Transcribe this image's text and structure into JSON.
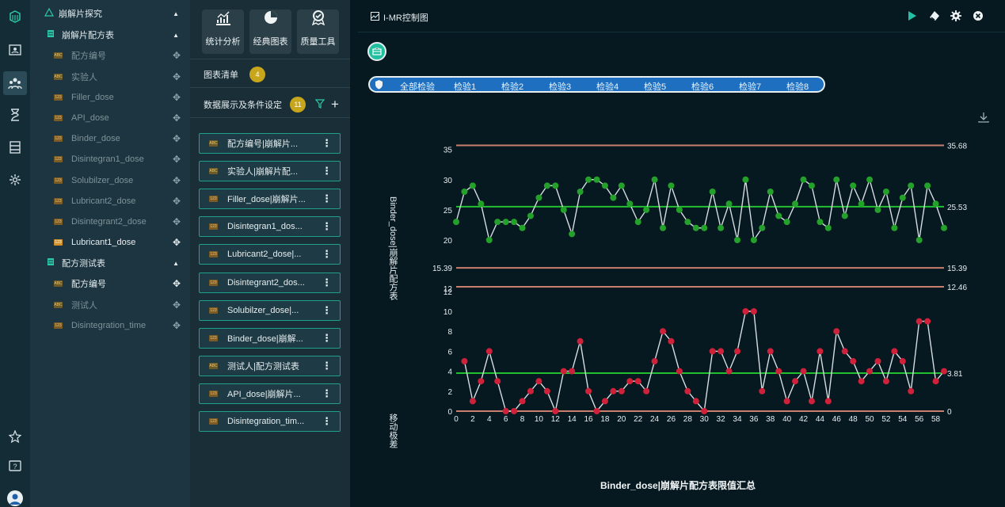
{
  "rail": {
    "icons": [
      "cube-icon",
      "id-card-icon",
      "users-icon",
      "hourglass-icon",
      "storage-icon",
      "settings-icon",
      "star-icon",
      "help-icon",
      "avatar-icon"
    ]
  },
  "tree": {
    "root": "崩解片探究",
    "table1": "崩解片配方表",
    "table1_fields": [
      {
        "label": "配方编号",
        "type": "abc"
      },
      {
        "label": "实验人",
        "type": "abc"
      },
      {
        "label": "Filler_dose",
        "type": "123"
      },
      {
        "label": "API_dose",
        "type": "123"
      },
      {
        "label": "Binder_dose",
        "type": "123"
      },
      {
        "label": "Disintegran1_dose",
        "type": "123"
      },
      {
        "label": "Solubilzer_dose",
        "type": "123"
      },
      {
        "label": "Lubricant2_dose",
        "type": "123"
      },
      {
        "label": "Disintegrant2_dose",
        "type": "123"
      },
      {
        "label": "Lubricant1_dose",
        "type": "123"
      }
    ],
    "table2": "配方测试表",
    "table2_fields": [
      {
        "label": "配方编号",
        "type": "abc"
      },
      {
        "label": "测试人",
        "type": "abc"
      },
      {
        "label": "Disintegration_time",
        "type": "123"
      }
    ]
  },
  "tools": [
    {
      "label": "统计分析",
      "icon": "chart-up-icon"
    },
    {
      "label": "经典图表",
      "icon": "pie-icon"
    },
    {
      "label": "质量工具",
      "icon": "quality-icon"
    }
  ],
  "chart_list": {
    "label": "图表清单",
    "count": "4"
  },
  "conditions": {
    "label": "数据展示及条件设定",
    "count": "11"
  },
  "items": [
    {
      "label": "配方编号|崩解片...",
      "type": "abc"
    },
    {
      "label": "实验人|崩解片配...",
      "type": "abc"
    },
    {
      "label": "Filler_dose|崩解片...",
      "type": "123"
    },
    {
      "label": "Disintegran1_dos...",
      "type": "123"
    },
    {
      "label": "Lubricant2_dose|...",
      "type": "123"
    },
    {
      "label": "Disintegrant2_dos...",
      "type": "123"
    },
    {
      "label": "Solubilzer_dose|...",
      "type": "123"
    },
    {
      "label": "Binder_dose|崩解...",
      "type": "123"
    },
    {
      "label": "测试人|配方测试表",
      "type": "abc"
    },
    {
      "label": "API_dose|崩解片...",
      "type": "123"
    },
    {
      "label": "Disintegration_tim...",
      "type": "123"
    }
  ],
  "main": {
    "title": "I-MR控制图",
    "tabs": [
      "全部检验",
      "检验1",
      "检验2",
      "检验3",
      "检验4",
      "检验5",
      "检验6",
      "检验7",
      "检验8"
    ],
    "bottom_title": "Binder_dose|崩解片配方表限值汇总"
  },
  "chart_data": [
    {
      "type": "line",
      "ylabel": "Binder_dose|崩解片配方表",
      "ylim": [
        12,
        36
      ],
      "yticks": [
        12,
        15.39,
        20,
        25,
        30,
        35
      ],
      "limits": [
        {
          "value": 35.68,
          "label": "35.68",
          "color": "#c97f6e"
        },
        {
          "value": 25.53,
          "label": "25.53",
          "color": "#22c030"
        },
        {
          "value": 15.39,
          "label": "15.39",
          "color": "#c97f6e"
        }
      ],
      "point_color": "#23a12a",
      "y": [
        23,
        28,
        29,
        26,
        20,
        23,
        23,
        23,
        22,
        24,
        27,
        29,
        29,
        25,
        21,
        28,
        30,
        30,
        29,
        27,
        29,
        26,
        23,
        25,
        30,
        22,
        29,
        25,
        23,
        22,
        22,
        28,
        22,
        26,
        20,
        30,
        20,
        22,
        28,
        24,
        23,
        26,
        30,
        29,
        23,
        22,
        30,
        24,
        29,
        26,
        30,
        25,
        28,
        22,
        27,
        29,
        20,
        29,
        26,
        22
      ]
    },
    {
      "type": "line",
      "ylabel": "移动极差",
      "ylim": [
        0,
        12.46
      ],
      "yticks": [
        0,
        2,
        4,
        6,
        8,
        10,
        12
      ],
      "xticks": [
        0,
        2,
        4,
        6,
        8,
        10,
        12,
        14,
        16,
        18,
        20,
        22,
        24,
        26,
        28,
        30,
        32,
        34,
        36,
        38,
        40,
        42,
        44,
        46,
        48,
        50,
        52,
        54,
        56,
        58
      ],
      "limits": [
        {
          "value": 12.46,
          "label": "12.46",
          "color": "#c97f6e"
        },
        {
          "value": 3.81,
          "label": "3.81",
          "color": "#22c030"
        },
        {
          "value": 0,
          "label": "0",
          "color": "#c97f6e"
        }
      ],
      "point_color": "#d0213a",
      "y": [
        5,
        1,
        3,
        6,
        3,
        0,
        0,
        1,
        2,
        3,
        2,
        0,
        4,
        4,
        7,
        2,
        0,
        1,
        2,
        2,
        3,
        3,
        2,
        5,
        8,
        7,
        4,
        2,
        1,
        0,
        6,
        6,
        4,
        6,
        10,
        10,
        2,
        6,
        4,
        1,
        3,
        4,
        1,
        6,
        1,
        8,
        6,
        5,
        3,
        4,
        5,
        3,
        6,
        5,
        2,
        9,
        9,
        3,
        4
      ]
    }
  ]
}
